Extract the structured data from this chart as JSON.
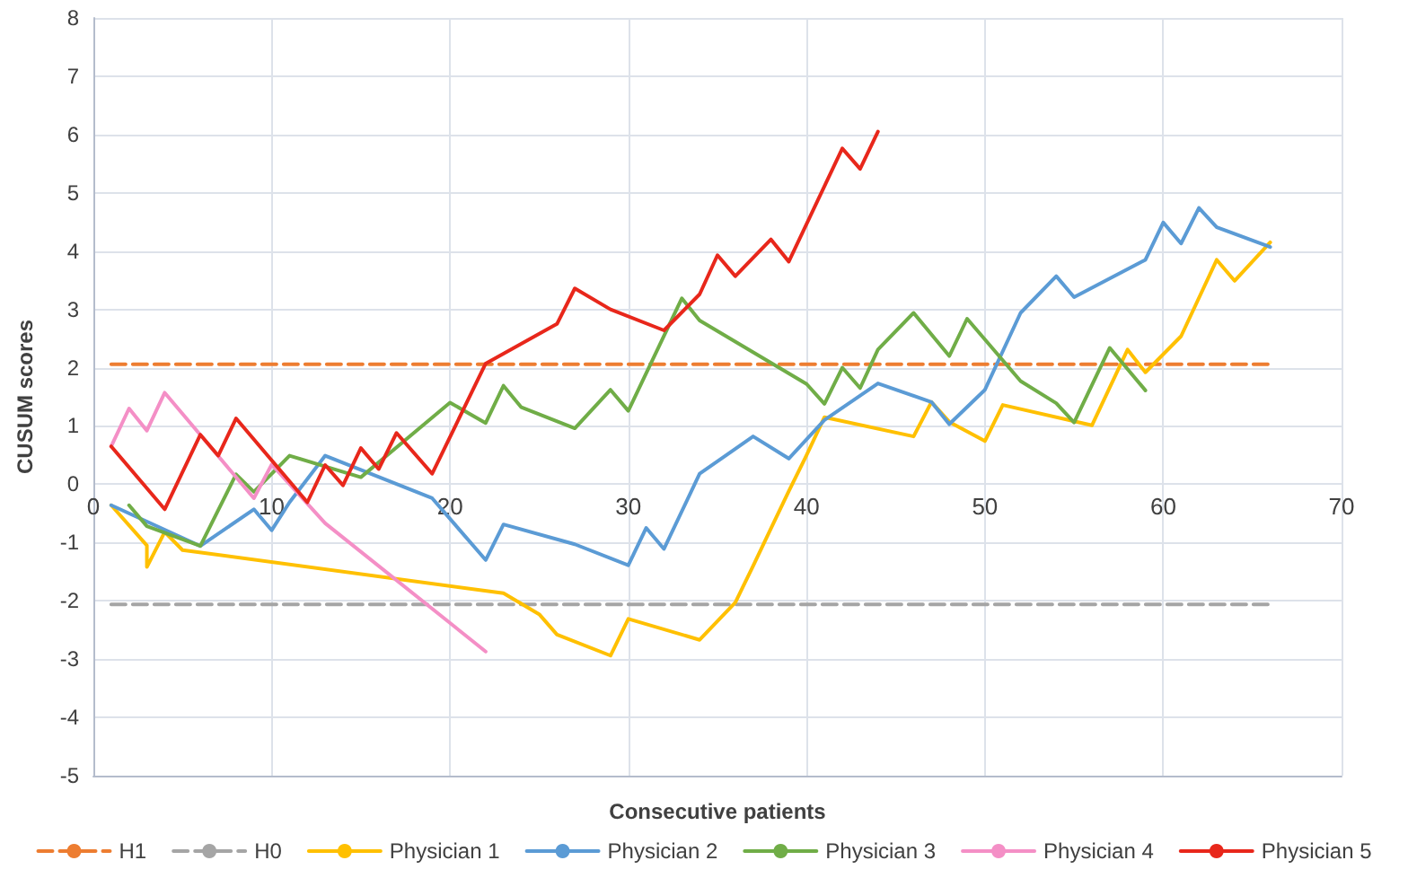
{
  "chart_data": {
    "type": "line",
    "xlabel": "Consecutive patients",
    "ylabel": "CUSUM scores",
    "xlim": [
      0,
      70
    ],
    "xticks": [
      0,
      10,
      20,
      30,
      40,
      50,
      60,
      70
    ],
    "ylim": [
      -5,
      8
    ],
    "yticks": [
      -5,
      -4,
      -3,
      -2,
      -1,
      0,
      1,
      2,
      3,
      4,
      5,
      6,
      7,
      8
    ],
    "grid": true,
    "legend": "bottom",
    "marker": "none",
    "line_style": "solid",
    "series": [
      {
        "name": "H1",
        "color": "#ed7d31",
        "line_style": "dashed",
        "x": [
          1,
          66
        ],
        "values": [
          2.06,
          2.06
        ]
      },
      {
        "name": "H0",
        "color": "#a5a5a5",
        "line_style": "dashed",
        "x": [
          1,
          66
        ],
        "values": [
          -2.06,
          -2.06
        ]
      },
      {
        "name": "Physician 1",
        "color": "#ffc000",
        "x": [
          1,
          3,
          3,
          4,
          5,
          23,
          25,
          26,
          29,
          30,
          34,
          36,
          37,
          38,
          39,
          40,
          41,
          46,
          47,
          48,
          50,
          51,
          56,
          58,
          59,
          61,
          63,
          64,
          66
        ],
        "values": [
          -0.36,
          -1.05,
          -1.42,
          -0.82,
          -1.13,
          -1.87,
          -2.23,
          -2.58,
          -2.94,
          -2.31,
          -2.67,
          -2.03,
          -1.4,
          -0.76,
          -0.12,
          0.5,
          1.15,
          0.82,
          1.41,
          1.07,
          0.74,
          1.36,
          1.01,
          2.31,
          1.92,
          2.54,
          3.85,
          3.49,
          4.15
        ]
      },
      {
        "name": "Physician 2",
        "color": "#5b9bd5",
        "x": [
          1,
          6,
          9,
          10,
          11,
          13,
          19,
          22,
          23,
          27,
          30,
          31,
          32,
          34,
          37,
          39,
          41,
          44,
          47,
          48,
          50,
          52,
          54,
          55,
          59,
          60,
          61,
          62,
          63,
          66
        ],
        "values": [
          -0.36,
          -1.06,
          -0.43,
          -0.79,
          -0.31,
          0.49,
          -0.24,
          -1.3,
          -0.69,
          -1.03,
          -1.39,
          -0.75,
          -1.11,
          0.18,
          0.82,
          0.44,
          1.1,
          1.73,
          1.41,
          1.03,
          1.62,
          2.94,
          3.57,
          3.21,
          3.85,
          4.49,
          4.13,
          4.74,
          4.41,
          4.07
        ]
      },
      {
        "name": "Physician 3",
        "color": "#70ad47",
        "x": [
          2,
          3,
          6,
          8,
          9,
          11,
          15,
          20,
          22,
          23,
          24,
          27,
          29,
          30,
          33,
          34,
          40,
          41,
          42,
          43,
          44,
          46,
          48,
          49,
          52,
          54,
          55,
          57,
          59
        ],
        "values": [
          -0.36,
          -0.72,
          -1.06,
          0.17,
          -0.13,
          0.49,
          0.12,
          1.4,
          1.05,
          1.69,
          1.32,
          0.96,
          1.62,
          1.26,
          3.19,
          2.81,
          1.72,
          1.38,
          2.0,
          1.65,
          2.31,
          2.94,
          2.2,
          2.84,
          1.77,
          1.39,
          1.06,
          2.34,
          1.61
        ]
      },
      {
        "name": "Physician 4",
        "color": "#f48fc6",
        "x": [
          1,
          2,
          3,
          4,
          9,
          10,
          13,
          22
        ],
        "values": [
          0.65,
          1.3,
          0.92,
          1.57,
          -0.24,
          0.34,
          -0.67,
          -2.87
        ]
      },
      {
        "name": "Physician 5",
        "color": "#e8271b",
        "x": [
          1,
          4,
          6,
          7,
          8,
          12,
          13,
          14,
          15,
          16,
          17,
          19,
          22,
          26,
          27,
          29,
          32,
          34,
          35,
          36,
          38,
          39,
          42,
          43,
          44
        ],
        "values": [
          0.65,
          -0.43,
          0.85,
          0.49,
          1.13,
          -0.31,
          0.33,
          -0.02,
          0.62,
          0.26,
          0.88,
          0.18,
          2.07,
          2.75,
          3.36,
          3.0,
          2.64,
          3.26,
          3.93,
          3.57,
          4.2,
          3.82,
          5.76,
          5.41,
          6.05
        ]
      }
    ]
  }
}
